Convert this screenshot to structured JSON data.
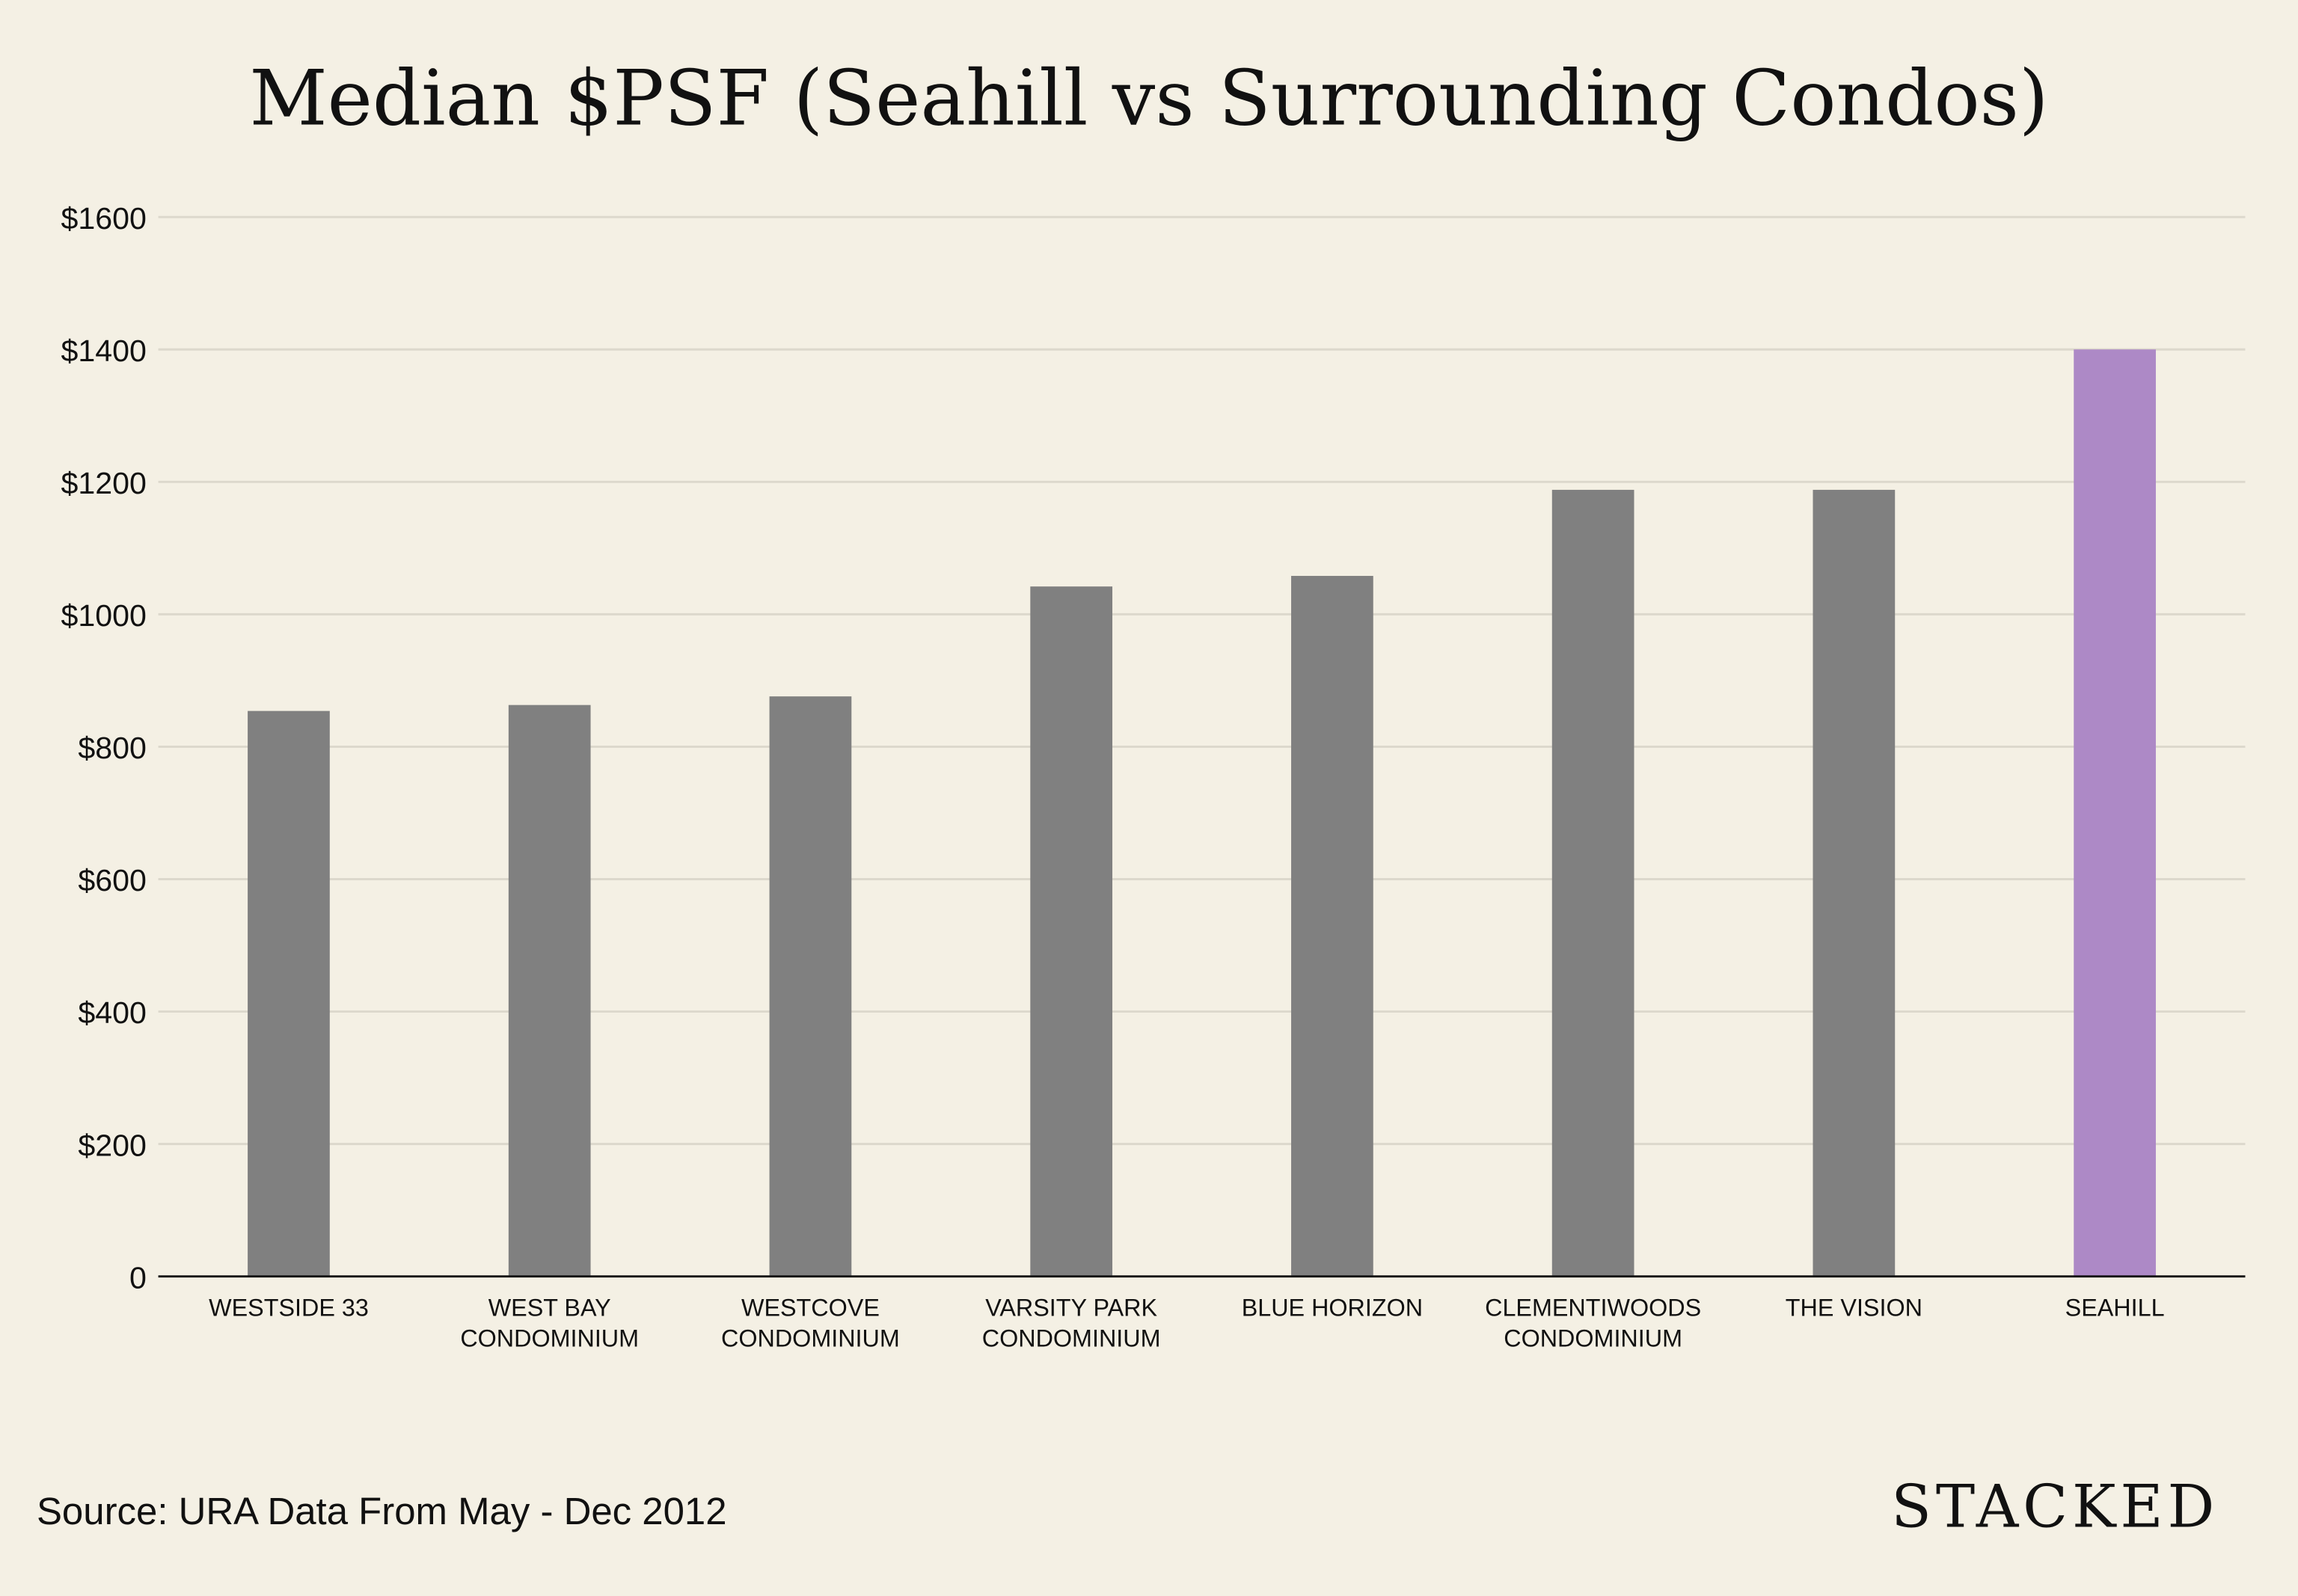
{
  "chart_data": {
    "type": "bar",
    "title": "Median $PSF (Seahill vs Surrounding Condos)",
    "xlabel": "",
    "ylabel": "",
    "ylim": [
      0,
      1600
    ],
    "yticks": [
      0,
      200,
      400,
      600,
      800,
      1000,
      1200,
      1400,
      1600
    ],
    "ytick_labels": [
      "0",
      "$200",
      "$400",
      "$600",
      "$800",
      "$1000",
      "$1200",
      "$1400",
      "$1600"
    ],
    "grid": true,
    "categories": [
      [
        "WESTSIDE 33"
      ],
      [
        "WEST BAY",
        "CONDOMINIUM"
      ],
      [
        "WESTCOVE",
        "CONDOMINIUM"
      ],
      [
        "VARSITY PARK",
        "CONDOMINIUM"
      ],
      [
        "BLUE HORIZON"
      ],
      [
        "CLEMENTIWOODS",
        "CONDOMINIUM"
      ],
      [
        "THE VISION"
      ],
      [
        "SEAHILL"
      ]
    ],
    "values": [
      854,
      863,
      876,
      1042,
      1058,
      1188,
      1188,
      1400
    ],
    "colors": [
      "#808080",
      "#808080",
      "#808080",
      "#808080",
      "#808080",
      "#808080",
      "#808080",
      "#ad89c6"
    ]
  },
  "footer": {
    "source": "Source: URA Data From May - Dec 2012",
    "logo": "STACKED"
  }
}
